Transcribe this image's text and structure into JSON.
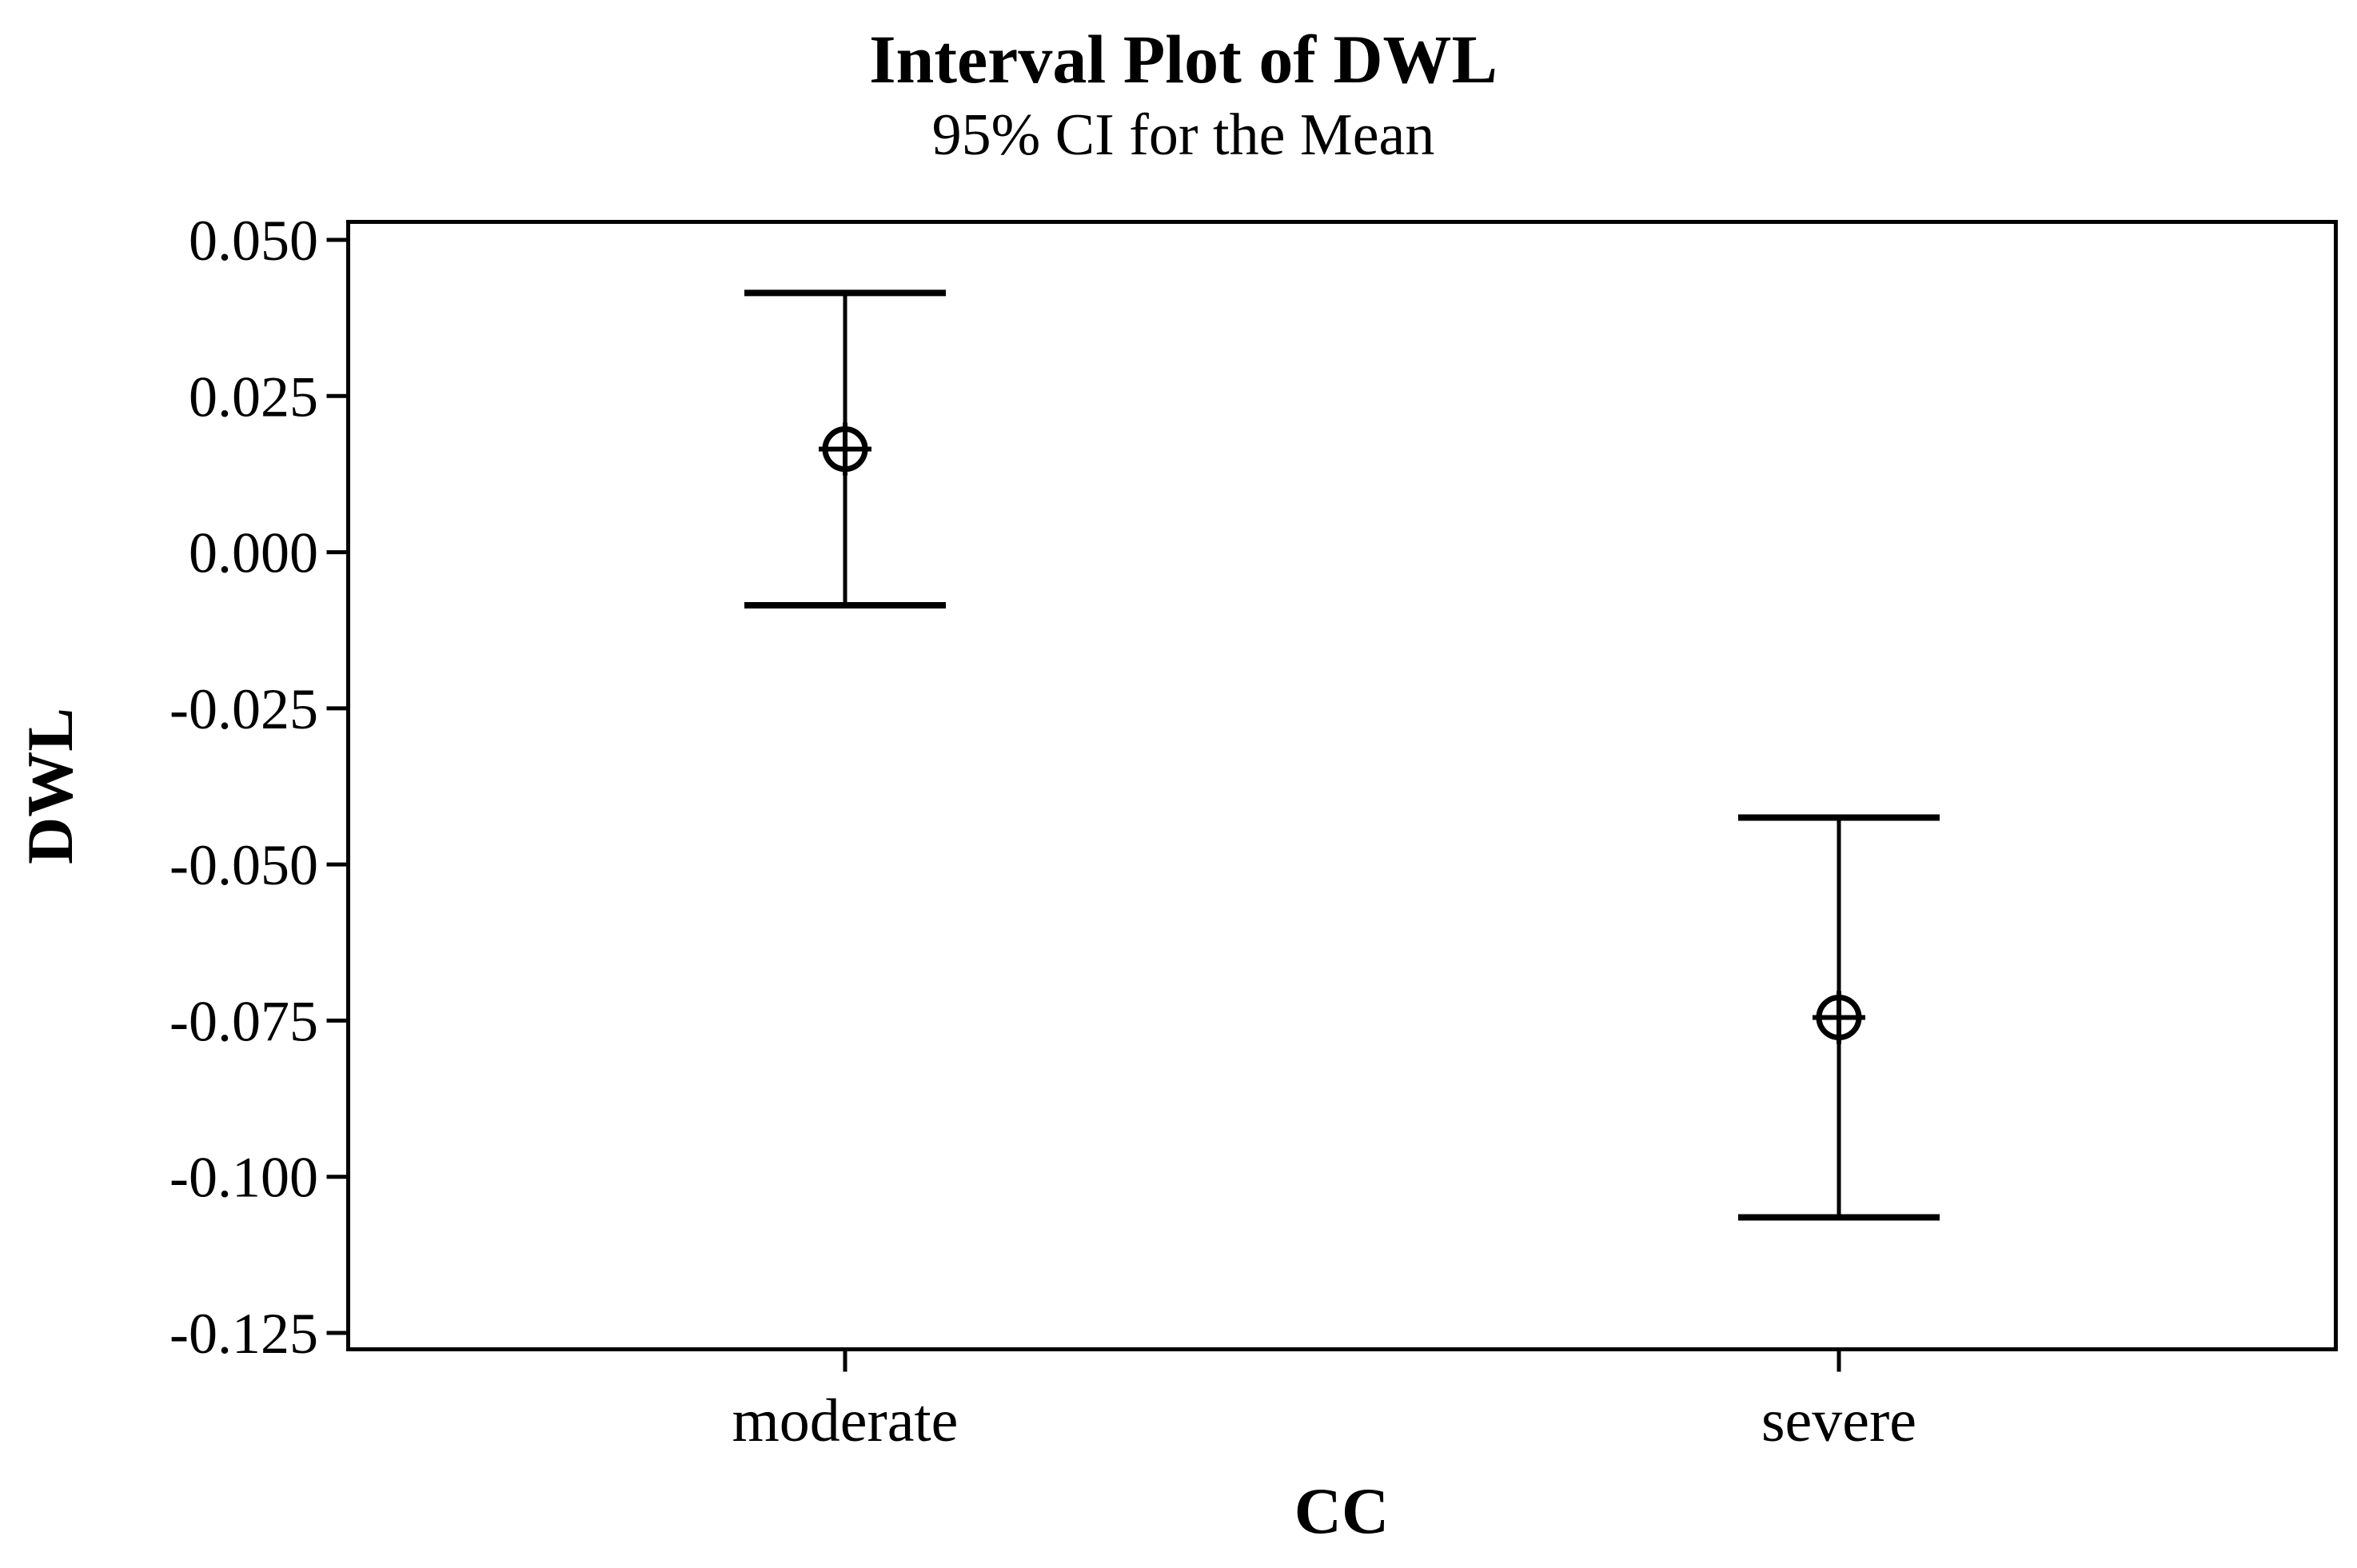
{
  "chart_data": {
    "type": "interval",
    "title": "Interval Plot of DWL",
    "subtitle": "95% CI for the Mean",
    "xlabel": "CC",
    "ylabel": "DWL",
    "categories": [
      "moderate",
      "severe"
    ],
    "series": [
      {
        "name": "95% CI for the Mean",
        "points": [
          {
            "category": "moderate",
            "mean": 0.0165,
            "ci_lower": -0.0085,
            "ci_upper": 0.0415
          },
          {
            "category": "severe",
            "mean": -0.0745,
            "ci_lower": -0.1065,
            "ci_upper": -0.0425
          }
        ]
      }
    ],
    "y_ticks": [
      0.05,
      0.025,
      0.0,
      -0.025,
      -0.05,
      -0.075,
      -0.1,
      -0.125
    ],
    "y_tick_labels": [
      "0.050",
      "0.025",
      "0.000",
      "-0.025",
      "-0.050",
      "-0.075",
      "-0.100",
      "-0.125"
    ],
    "ylim": [
      -0.128,
      0.053
    ],
    "grid": false,
    "legend": "none",
    "marker": "circled-plus",
    "colors": {
      "line": "#000000",
      "background": "#ffffff"
    }
  }
}
